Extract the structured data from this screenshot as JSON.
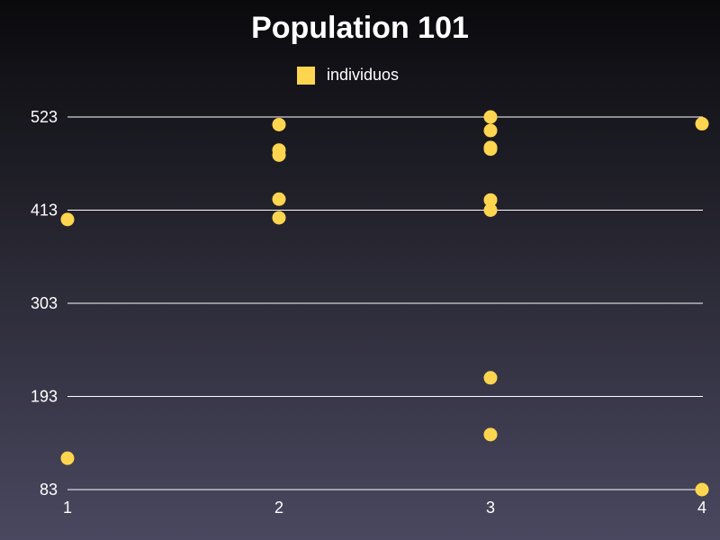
{
  "chart_data": {
    "type": "scatter",
    "title": "Population 101",
    "xlabel": "",
    "ylabel": "",
    "series": [
      {
        "name": "individuos",
        "color": "#fdd54f",
        "points": [
          {
            "x": 1,
            "y": 402
          },
          {
            "x": 1,
            "y": 120
          },
          {
            "x": 2,
            "y": 514
          },
          {
            "x": 2,
            "y": 484
          },
          {
            "x": 2,
            "y": 478
          },
          {
            "x": 2,
            "y": 426
          },
          {
            "x": 2,
            "y": 404
          },
          {
            "x": 3,
            "y": 523
          },
          {
            "x": 3,
            "y": 507
          },
          {
            "x": 3,
            "y": 487
          },
          {
            "x": 3,
            "y": 485
          },
          {
            "x": 3,
            "y": 425
          },
          {
            "x": 3,
            "y": 413
          },
          {
            "x": 3,
            "y": 215
          },
          {
            "x": 3,
            "y": 148
          },
          {
            "x": 4,
            "y": 515
          },
          {
            "x": 4,
            "y": 83
          }
        ]
      }
    ],
    "x_ticks": [
      "1",
      "2",
      "3",
      "4"
    ],
    "y_ticks": [
      "83",
      "193",
      "303",
      "413",
      "523"
    ],
    "xlim": [
      1,
      4
    ],
    "ylim": [
      83,
      523
    ],
    "grid": "horizontal",
    "legend_position": "top-center"
  }
}
